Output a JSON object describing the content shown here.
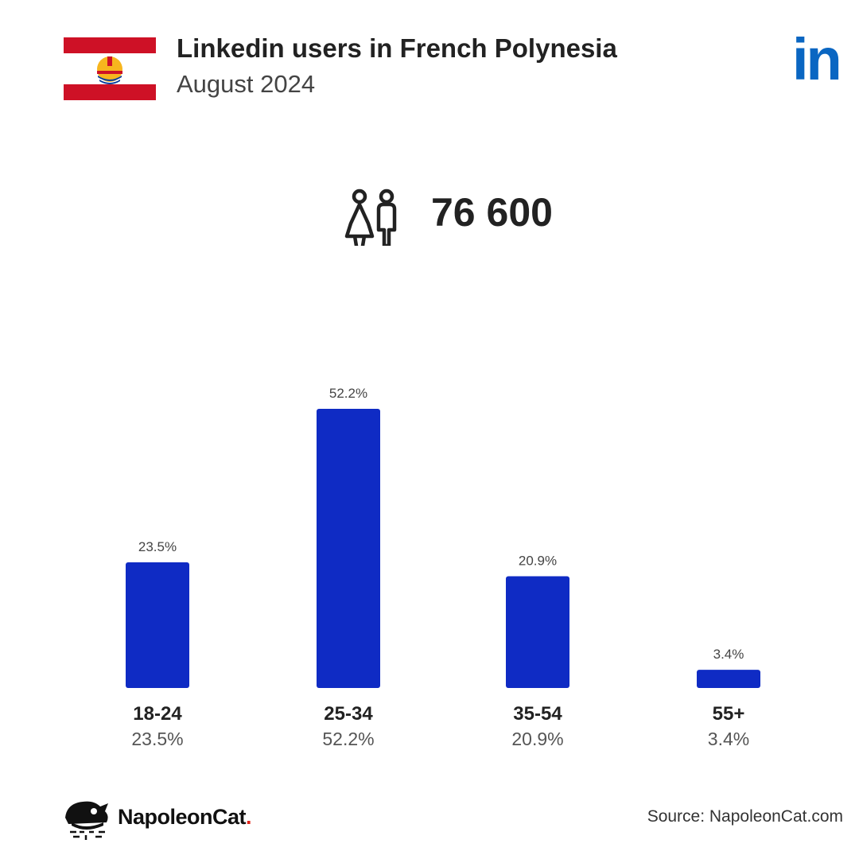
{
  "header": {
    "title": "Linkedin users in French Polynesia",
    "subtitle": "August 2024",
    "brand_logo_text": "in",
    "flag_icon": "french-polynesia-flag-icon"
  },
  "total": {
    "icon": "people-icon",
    "value": "76 600"
  },
  "footer": {
    "logo_name": "NapoleonCat",
    "logo_dot": ".",
    "source": "Source: NapoleonCat.com"
  },
  "colors": {
    "bar": "#0f2bc4",
    "flag_red": "#ce1126",
    "brand_blue": "#0a66c2",
    "label_gray": "#555555"
  },
  "chart_data": {
    "type": "bar",
    "categories": [
      "18-24",
      "25-34",
      "35-54",
      "55+"
    ],
    "values": [
      23.5,
      52.2,
      20.9,
      3.4
    ],
    "value_labels": [
      "23.5%",
      "52.2%",
      "20.9%",
      "3.4%"
    ],
    "unit": "%",
    "ylim": [
      0,
      52.2
    ],
    "grid": false,
    "legend": "none"
  }
}
